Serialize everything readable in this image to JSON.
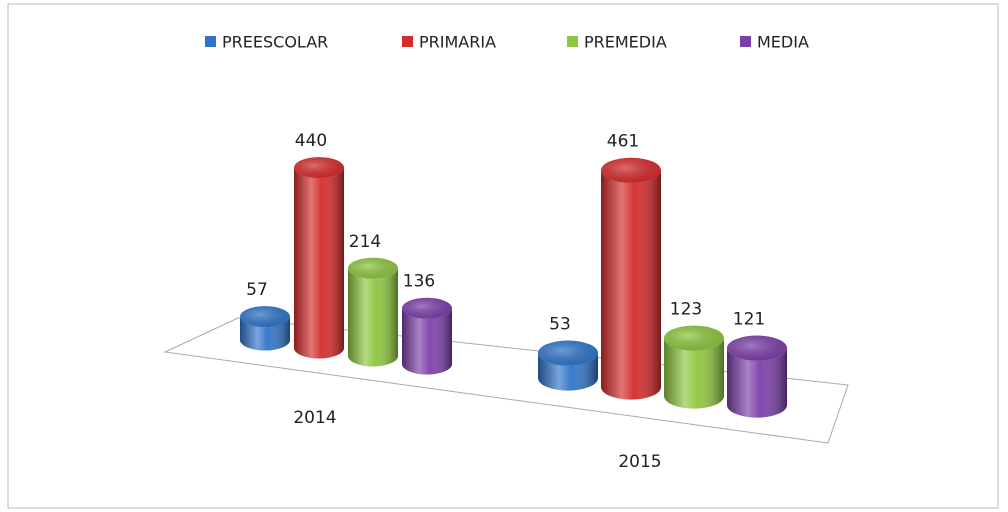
{
  "chart_data": {
    "type": "bar3d",
    "categories": [
      "2014",
      "2015"
    ],
    "series": [
      {
        "name": "PREESCOLAR",
        "color": "#2f74c9",
        "values": [
          57,
          53
        ]
      },
      {
        "name": "PRIMARIA",
        "color": "#d42b2b",
        "values": [
          440,
          461
        ]
      },
      {
        "name": "PREMEDIA",
        "color": "#8dc63f",
        "values": [
          214,
          123
        ]
      },
      {
        "name": "MEDIA",
        "color": "#7b3fa9",
        "values": [
          136,
          121
        ]
      }
    ],
    "legend": "top"
  }
}
